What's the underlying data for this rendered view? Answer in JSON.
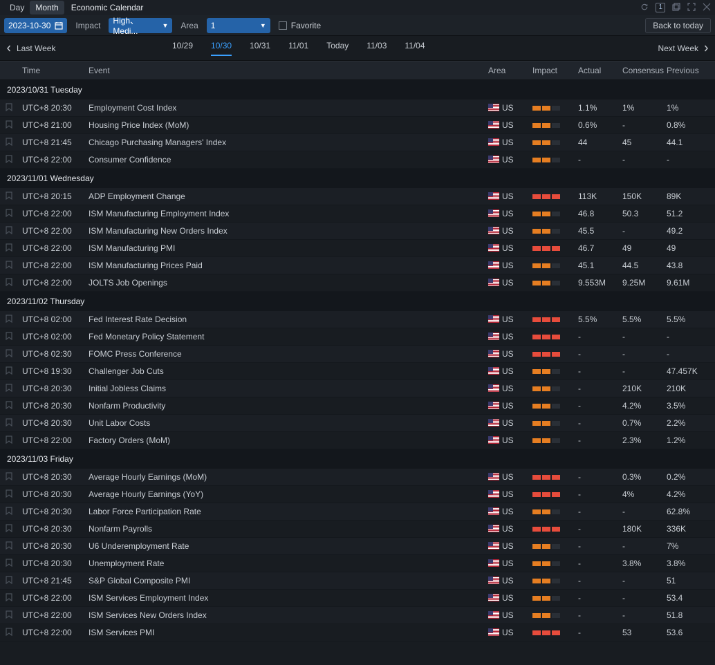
{
  "titlebar": {
    "tab_day": "Day",
    "tab_month": "Month",
    "title": "Economic Calendar",
    "badge": "1"
  },
  "filters": {
    "date": "2023-10-30",
    "impact_label": "Impact",
    "impact_value": "High、Medi...",
    "area_label": "Area",
    "area_value": "1",
    "favorite_label": "Favorite",
    "back_to_today": "Back to today"
  },
  "weeknav": {
    "last_week": "Last Week",
    "next_week": "Next Week",
    "days": [
      "10/29",
      "10/30",
      "10/31",
      "11/01",
      "Today",
      "11/03",
      "11/04"
    ],
    "active_index": 1
  },
  "columns": {
    "time": "Time",
    "event": "Event",
    "area": "Area",
    "impact": "Impact",
    "actual": "Actual",
    "consensus": "Consensus",
    "previous": "Previous"
  },
  "groups": [
    {
      "header": "2023/10/31 Tuesday",
      "rows": [
        {
          "time": "UTC+8 20:30",
          "event": "Employment Cost Index",
          "area": "US",
          "impact": 2,
          "color": "orange",
          "actual": "1.1%",
          "consensus": "1%",
          "previous": "1%"
        },
        {
          "time": "UTC+8 21:00",
          "event": "Housing Price Index (MoM)",
          "area": "US",
          "impact": 2,
          "color": "orange",
          "actual": "0.6%",
          "consensus": "-",
          "previous": "0.8%"
        },
        {
          "time": "UTC+8 21:45",
          "event": "Chicago Purchasing Managers' Index",
          "area": "US",
          "impact": 2,
          "color": "orange",
          "actual": "44",
          "consensus": "45",
          "previous": "44.1"
        },
        {
          "time": "UTC+8 22:00",
          "event": "Consumer Confidence",
          "area": "US",
          "impact": 2,
          "color": "orange",
          "actual": "-",
          "consensus": "-",
          "previous": "-"
        }
      ]
    },
    {
      "header": "2023/11/01 Wednesday",
      "rows": [
        {
          "time": "UTC+8 20:15",
          "event": "ADP Employment Change",
          "area": "US",
          "impact": 3,
          "color": "red",
          "actual": "113K",
          "consensus": "150K",
          "previous": "89K"
        },
        {
          "time": "UTC+8 22:00",
          "event": "ISM Manufacturing Employment Index",
          "area": "US",
          "impact": 2,
          "color": "orange",
          "actual": "46.8",
          "consensus": "50.3",
          "previous": "51.2"
        },
        {
          "time": "UTC+8 22:00",
          "event": "ISM Manufacturing New Orders Index",
          "area": "US",
          "impact": 2,
          "color": "orange",
          "actual": "45.5",
          "consensus": "-",
          "previous": "49.2"
        },
        {
          "time": "UTC+8 22:00",
          "event": "ISM Manufacturing PMI",
          "area": "US",
          "impact": 3,
          "color": "red",
          "actual": "46.7",
          "consensus": "49",
          "previous": "49"
        },
        {
          "time": "UTC+8 22:00",
          "event": "ISM Manufacturing Prices Paid",
          "area": "US",
          "impact": 2,
          "color": "orange",
          "actual": "45.1",
          "consensus": "44.5",
          "previous": "43.8"
        },
        {
          "time": "UTC+8 22:00",
          "event": "JOLTS Job Openings",
          "area": "US",
          "impact": 2,
          "color": "orange",
          "actual": "9.553M",
          "consensus": "9.25M",
          "previous": "9.61M"
        }
      ]
    },
    {
      "header": "2023/11/02 Thursday",
      "rows": [
        {
          "time": "UTC+8 02:00",
          "event": "Fed Interest Rate Decision",
          "area": "US",
          "impact": 3,
          "color": "red",
          "actual": "5.5%",
          "consensus": "5.5%",
          "previous": "5.5%"
        },
        {
          "time": "UTC+8 02:00",
          "event": "Fed Monetary Policy Statement",
          "area": "US",
          "impact": 3,
          "color": "red",
          "actual": "-",
          "consensus": "-",
          "previous": "-"
        },
        {
          "time": "UTC+8 02:30",
          "event": "FOMC Press Conference",
          "area": "US",
          "impact": 3,
          "color": "red",
          "actual": "-",
          "consensus": "-",
          "previous": "-"
        },
        {
          "time": "UTC+8 19:30",
          "event": "Challenger Job Cuts",
          "area": "US",
          "impact": 2,
          "color": "orange",
          "actual": "-",
          "consensus": "-",
          "previous": "47.457K"
        },
        {
          "time": "UTC+8 20:30",
          "event": "Initial Jobless Claims",
          "area": "US",
          "impact": 2,
          "color": "orange",
          "actual": "-",
          "consensus": "210K",
          "previous": "210K"
        },
        {
          "time": "UTC+8 20:30",
          "event": "Nonfarm Productivity",
          "area": "US",
          "impact": 2,
          "color": "orange",
          "actual": "-",
          "consensus": "4.2%",
          "previous": "3.5%"
        },
        {
          "time": "UTC+8 20:30",
          "event": "Unit Labor Costs",
          "area": "US",
          "impact": 2,
          "color": "orange",
          "actual": "-",
          "consensus": "0.7%",
          "previous": "2.2%"
        },
        {
          "time": "UTC+8 22:00",
          "event": "Factory Orders (MoM)",
          "area": "US",
          "impact": 2,
          "color": "orange",
          "actual": "-",
          "consensus": "2.3%",
          "previous": "1.2%"
        }
      ]
    },
    {
      "header": "2023/11/03 Friday",
      "rows": [
        {
          "time": "UTC+8 20:30",
          "event": "Average Hourly Earnings (MoM)",
          "area": "US",
          "impact": 3,
          "color": "red",
          "actual": "-",
          "consensus": "0.3%",
          "previous": "0.2%"
        },
        {
          "time": "UTC+8 20:30",
          "event": "Average Hourly Earnings (YoY)",
          "area": "US",
          "impact": 3,
          "color": "red",
          "actual": "-",
          "consensus": "4%",
          "previous": "4.2%"
        },
        {
          "time": "UTC+8 20:30",
          "event": "Labor Force Participation Rate",
          "area": "US",
          "impact": 2,
          "color": "orange",
          "actual": "-",
          "consensus": "-",
          "previous": "62.8%"
        },
        {
          "time": "UTC+8 20:30",
          "event": "Nonfarm Payrolls",
          "area": "US",
          "impact": 3,
          "color": "red",
          "actual": "-",
          "consensus": "180K",
          "previous": "336K"
        },
        {
          "time": "UTC+8 20:30",
          "event": "U6 Underemployment Rate",
          "area": "US",
          "impact": 2,
          "color": "orange",
          "actual": "-",
          "consensus": "-",
          "previous": "7%"
        },
        {
          "time": "UTC+8 20:30",
          "event": "Unemployment Rate",
          "area": "US",
          "impact": 2,
          "color": "orange",
          "actual": "-",
          "consensus": "3.8%",
          "previous": "3.8%"
        },
        {
          "time": "UTC+8 21:45",
          "event": "S&P Global Composite PMI",
          "area": "US",
          "impact": 2,
          "color": "orange",
          "actual": "-",
          "consensus": "-",
          "previous": "51"
        },
        {
          "time": "UTC+8 22:00",
          "event": "ISM Services Employment Index",
          "area": "US",
          "impact": 2,
          "color": "orange",
          "actual": "-",
          "consensus": "-",
          "previous": "53.4"
        },
        {
          "time": "UTC+8 22:00",
          "event": "ISM Services New Orders Index",
          "area": "US",
          "impact": 2,
          "color": "orange",
          "actual": "-",
          "consensus": "-",
          "previous": "51.8"
        },
        {
          "time": "UTC+8 22:00",
          "event": "ISM Services PMI",
          "area": "US",
          "impact": 3,
          "color": "red",
          "actual": "-",
          "consensus": "53",
          "previous": "53.6"
        }
      ]
    }
  ]
}
